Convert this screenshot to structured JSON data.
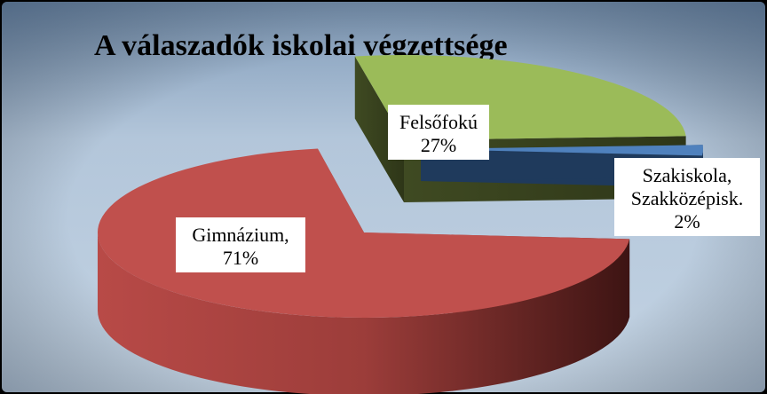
{
  "chart_data": {
    "type": "pie",
    "title": "A válaszadók iskolai végzettsége",
    "slices": [
      {
        "label_lines": [
          "Felsőfokú",
          "27%"
        ],
        "value": 27,
        "color": "#9bbb59"
      },
      {
        "label_lines": [
          "Szakiskola,",
          "Szakközépisk.",
          "2%"
        ],
        "value": 2,
        "color": "#4f81bd"
      },
      {
        "label_lines": [
          "Gimnázium,",
          "71%"
        ],
        "value": 71,
        "color": "#c0504d"
      }
    ],
    "exploded": true,
    "style": "3d",
    "legend": "none"
  }
}
